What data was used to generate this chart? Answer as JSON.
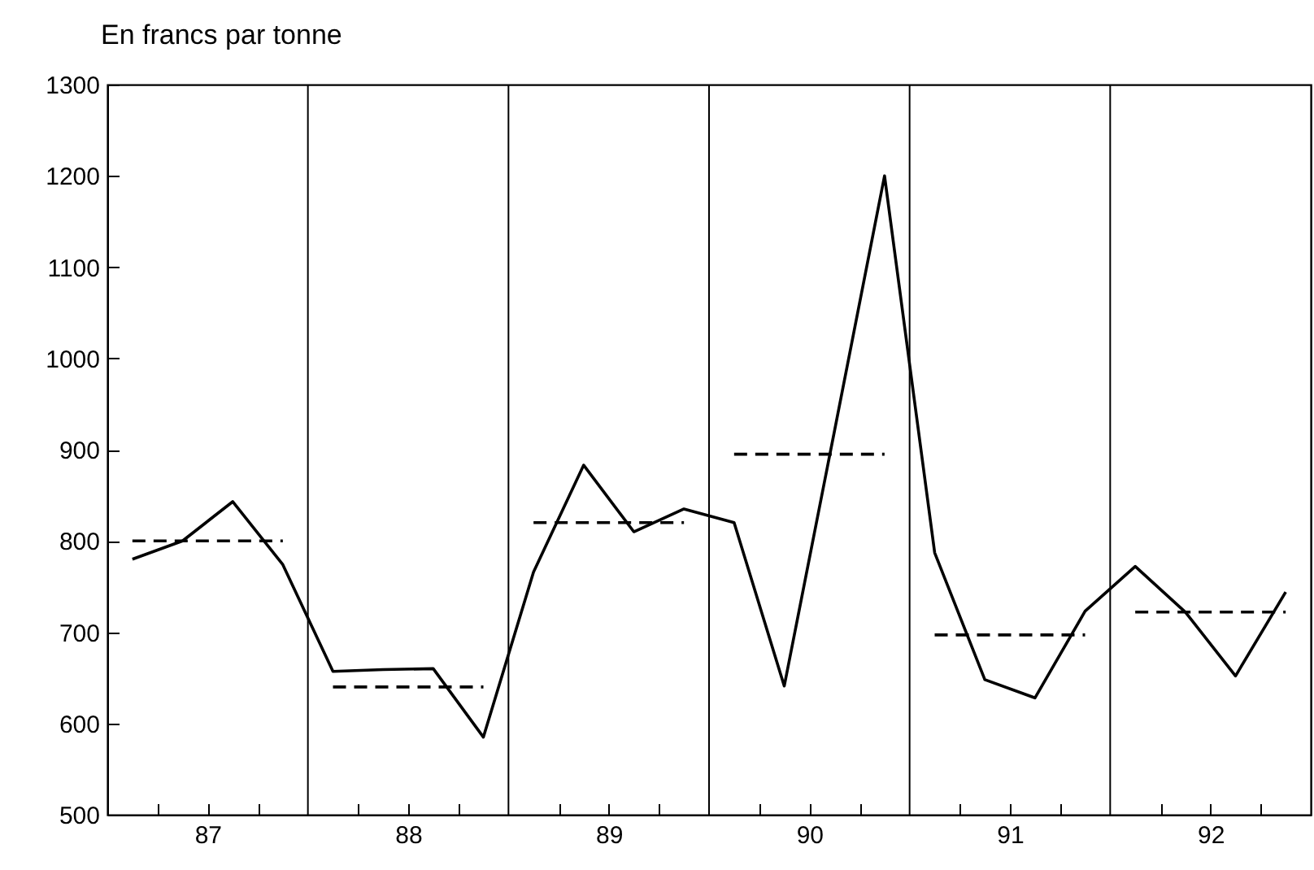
{
  "chart_data": {
    "type": "line",
    "title": "En francs par tonne",
    "xlim": [
      87,
      93
    ],
    "xticks": [
      {
        "value": 87.25,
        "label": null
      },
      {
        "value": 87.5,
        "label": "87"
      },
      {
        "value": 87.75,
        "label": null
      },
      {
        "value": 88.25,
        "label": null
      },
      {
        "value": 88.5,
        "label": "88"
      },
      {
        "value": 88.75,
        "label": null
      },
      {
        "value": 89.25,
        "label": null
      },
      {
        "value": 89.5,
        "label": "89"
      },
      {
        "value": 89.75,
        "label": null
      },
      {
        "value": 90.25,
        "label": null
      },
      {
        "value": 90.5,
        "label": "90"
      },
      {
        "value": 90.75,
        "label": null
      },
      {
        "value": 91.25,
        "label": null
      },
      {
        "value": 91.5,
        "label": "91"
      },
      {
        "value": 91.75,
        "label": null
      },
      {
        "value": 92.25,
        "label": null
      },
      {
        "value": 92.5,
        "label": "92"
      },
      {
        "value": 92.75,
        "label": null
      }
    ],
    "ylim": [
      500,
      1300
    ],
    "yticks": [
      500,
      600,
      700,
      800,
      900,
      1000,
      1100,
      1200,
      1300
    ],
    "grid": false,
    "marker": "none",
    "series": [
      {
        "color": "#000000",
        "line_style": "solid",
        "x": [
          87.125,
          87.375,
          87.625,
          87.875,
          88.125,
          88.375,
          88.625,
          88.875,
          89.125,
          89.375,
          89.625,
          89.875,
          90.125,
          90.375,
          90.625,
          90.875,
          91.125,
          91.375,
          91.625,
          91.875,
          92.125,
          92.375,
          92.625,
          92.875
        ],
        "values": [
          780,
          800,
          843,
          774,
          657,
          659,
          660,
          585,
          766,
          883,
          810,
          835,
          820,
          641,
          920,
          1200,
          787,
          648,
          628,
          723,
          772,
          722,
          652,
          744
        ]
      },
      {
        "color": "#000000",
        "line_style": "dashed",
        "x": [
          87.125,
          87.875,
          88.0,
          88.125,
          88.875,
          89.0,
          89.125,
          89.875,
          90.0,
          90.125,
          90.875,
          91.0,
          91.125,
          91.875,
          92.0,
          92.125,
          92.875
        ],
        "values": [
          800,
          800,
          null,
          640,
          640,
          null,
          820,
          820,
          null,
          895,
          895,
          null,
          697,
          697,
          null,
          722,
          722
        ]
      }
    ],
    "ref_lines": [
      {
        "axis": "x",
        "value": 88
      },
      {
        "axis": "x",
        "value": 89
      },
      {
        "axis": "x",
        "value": 90
      },
      {
        "axis": "x",
        "value": 91
      },
      {
        "axis": "x",
        "value": 92
      }
    ]
  }
}
